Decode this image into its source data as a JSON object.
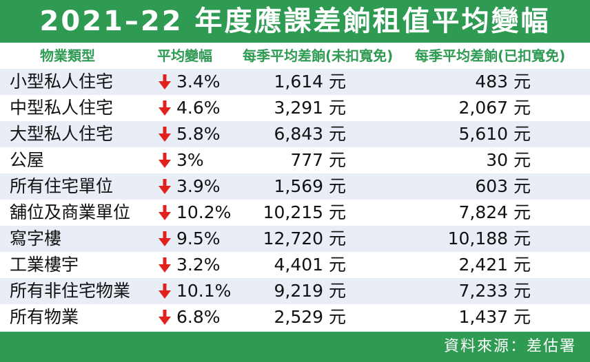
{
  "chart_data": {
    "type": "table",
    "title": "2021–22 年度應課差餉租值平均變幅",
    "columns": [
      "物業類型",
      "平均變幅",
      "每季平均差餉(未扣寬免)",
      "每季平均差餉(已扣寬免)"
    ],
    "change_direction": "down",
    "rows": [
      {
        "category": "小型私人住宅",
        "change": "3.4%",
        "before": "1,614 元",
        "after": "483 元"
      },
      {
        "category": "中型私人住宅",
        "change": "4.6%",
        "before": "3,291 元",
        "after": "2,067 元"
      },
      {
        "category": "大型私人住宅",
        "change": "5.8%",
        "before": "6,843 元",
        "after": "5,610 元"
      },
      {
        "category": "公屋",
        "change": "3%",
        "before": "777 元",
        "after": "30 元"
      },
      {
        "category": "所有住宅單位",
        "change": "3.9%",
        "before": "1,569 元",
        "after": "603 元"
      },
      {
        "category": "舖位及商業單位",
        "change": "10.2%",
        "before": "10,215 元",
        "after": "7,824 元"
      },
      {
        "category": "寫字樓",
        "change": "9.5%",
        "before": "12,720 元",
        "after": "10,188 元"
      },
      {
        "category": "工業樓宇",
        "change": "3.2%",
        "before": "4,401 元",
        "after": "2,421 元"
      },
      {
        "category": "所有非住宅物業",
        "change": "10.1%",
        "before": "9,219 元",
        "after": "7,233 元"
      },
      {
        "category": "所有物業",
        "change": "6.8%",
        "before": "2,529 元",
        "after": "1,437 元"
      }
    ],
    "source": "資料來源：差估署"
  },
  "colors": {
    "header_green": "#2e9a52",
    "stripe": "#e8edf6",
    "arrow_red": "#e0211c",
    "text": "#111111"
  },
  "icons": {
    "change_arrow": "arrow-down-icon"
  }
}
